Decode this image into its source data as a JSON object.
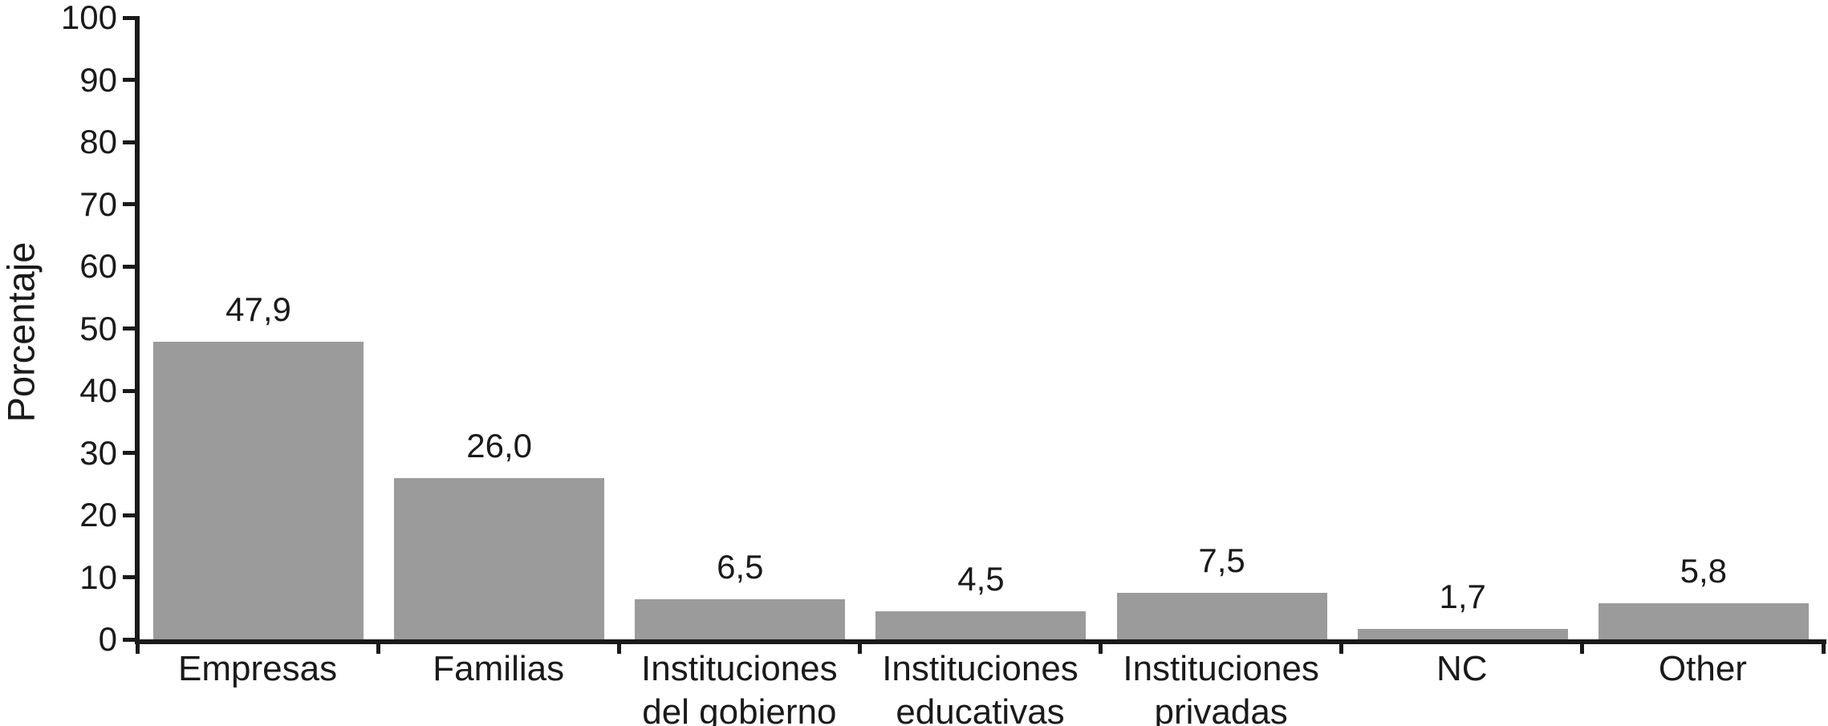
{
  "chart_data": {
    "type": "bar",
    "title": "",
    "ylabel": "Porcentaje",
    "xlabel": "",
    "ylim": [
      0,
      100
    ],
    "ytick_step": 10,
    "yticks": [
      0,
      10,
      20,
      30,
      40,
      50,
      60,
      70,
      80,
      90,
      100
    ],
    "categories": [
      "Empresas",
      "Familias",
      "Instituciones del gobierno",
      "Instituciones educativas",
      "Instituciones privadas",
      "NC",
      "Other"
    ],
    "category_lines": [
      [
        "Empresas"
      ],
      [
        "Familias"
      ],
      [
        "Instituciones",
        "del gobierno"
      ],
      [
        "Instituciones",
        "educativas"
      ],
      [
        "Instituciones",
        "privadas"
      ],
      [
        "NC"
      ],
      [
        "Other"
      ]
    ],
    "values": [
      47.9,
      26.0,
      6.5,
      4.5,
      7.5,
      1.7,
      5.8
    ],
    "value_labels": [
      "47,9",
      "26,0",
      "6,5",
      "4,5",
      "7,5",
      "1,7",
      "5,8"
    ],
    "decimal_separator": ",",
    "grid": false,
    "legend": null,
    "colors": {
      "bar": "#9b9b9b",
      "axis": "#1a1a1a",
      "text": "#1a1a1a",
      "background": "#ffffff"
    }
  }
}
